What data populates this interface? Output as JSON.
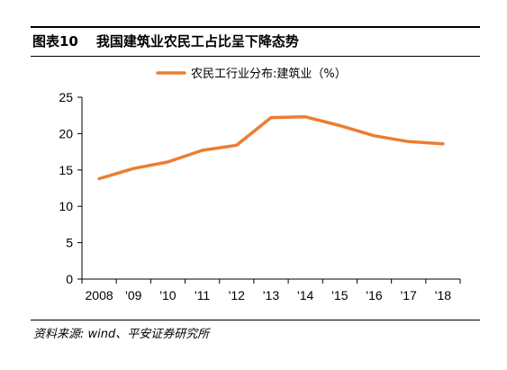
{
  "header": {
    "figure_no": "图表10",
    "title": "我国建筑业农民工占比呈下降态势"
  },
  "footer": {
    "source": "资料来源: wind、平安证券研究所"
  },
  "colors": {
    "series": "#ED7D31",
    "axis": "#000000"
  },
  "chart_data": {
    "type": "line",
    "title": "我国建筑业农民工占比呈下降态势",
    "xlabel": "",
    "ylabel": "",
    "categories": [
      "2008",
      "'09",
      "'10",
      "'11",
      "'12",
      "'13",
      "'14",
      "'15",
      "'16",
      "'17",
      "'18"
    ],
    "series": [
      {
        "name": "农民工行业分布:建筑业（%）",
        "values": [
          13.8,
          15.2,
          16.1,
          17.7,
          18.4,
          22.2,
          22.3,
          21.1,
          19.7,
          18.9,
          18.6
        ]
      }
    ],
    "ylim": [
      0,
      25
    ],
    "yticks": [
      0,
      5,
      10,
      15,
      20,
      25
    ],
    "grid": false,
    "legend": "top-center"
  }
}
